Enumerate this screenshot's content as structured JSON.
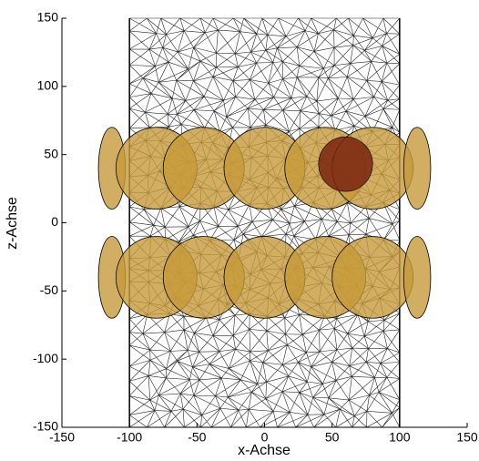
{
  "chart_data": {
    "type": "scene",
    "x_label": "x-Achse",
    "y_label": "z-Achse",
    "xlim": [
      -150,
      150
    ],
    "ylim": [
      -150,
      150
    ],
    "xticks": [
      -150,
      -100,
      -50,
      0,
      50,
      100,
      150
    ],
    "yticks": [
      -150,
      -100,
      -50,
      0,
      50,
      100,
      150
    ],
    "mesh_x": [
      -100,
      100
    ],
    "mesh_color": "#000000",
    "disk_color": "#c59a3a",
    "disks": [
      {
        "x": -113,
        "z": 40,
        "rx": 10,
        "rz": 30
      },
      {
        "x": -80,
        "z": 40,
        "rx": 30,
        "rz": 30
      },
      {
        "x": -45,
        "z": 40,
        "rx": 30,
        "rz": 30
      },
      {
        "x": 0,
        "z": 40,
        "rx": 30,
        "rz": 30
      },
      {
        "x": 45,
        "z": 40,
        "rx": 30,
        "rz": 30
      },
      {
        "x": 80,
        "z": 40,
        "rx": 30,
        "rz": 30
      },
      {
        "x": 113,
        "z": 40,
        "rx": 10,
        "rz": 30
      },
      {
        "x": -113,
        "z": -40,
        "rx": 10,
        "rz": 30
      },
      {
        "x": -80,
        "z": -40,
        "rx": 30,
        "rz": 30
      },
      {
        "x": -45,
        "z": -40,
        "rx": 30,
        "rz": 30
      },
      {
        "x": 0,
        "z": -40,
        "rx": 30,
        "rz": 30
      },
      {
        "x": 45,
        "z": -40,
        "rx": 30,
        "rz": 30
      },
      {
        "x": 80,
        "z": -40,
        "rx": 30,
        "rz": 30
      },
      {
        "x": 113,
        "z": -40,
        "rx": 10,
        "rz": 30
      }
    ],
    "marker": {
      "x": 60,
      "z": 43,
      "rx": 20,
      "rz": 20,
      "color": "#7a2410"
    }
  }
}
